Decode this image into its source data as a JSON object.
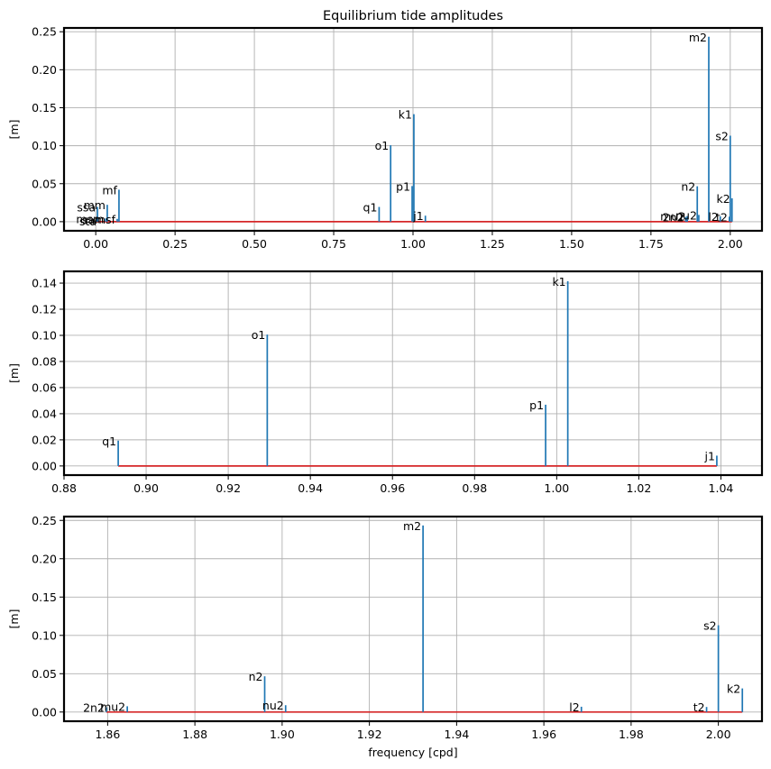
{
  "colors": {
    "stem": "#1f77b4",
    "baseline": "#d62728",
    "grid": "#b0b0b0"
  },
  "chart_data": [
    {
      "type": "stem",
      "title": "Equilibrium tide amplitudes",
      "ylabel": "[m]",
      "xlabel": "",
      "xlim": [
        -0.1,
        2.1
      ],
      "ylim": [
        -0.012,
        0.255
      ],
      "xticks": [
        0.0,
        0.25,
        0.5,
        0.75,
        1.0,
        1.25,
        1.5,
        1.75,
        2.0
      ],
      "xtick_labels": [
        "0.00",
        "0.25",
        "0.50",
        "0.75",
        "1.00",
        "1.25",
        "1.50",
        "1.75",
        "2.00"
      ],
      "yticks": [
        0.0,
        0.05,
        0.1,
        0.15,
        0.2,
        0.25
      ],
      "ytick_labels": [
        "0.00",
        "0.05",
        "0.10",
        "0.15",
        "0.20",
        "0.25"
      ],
      "grid": true,
      "baseline": [
        0.0,
        2.0056
      ],
      "points": [
        {
          "label": "sa",
          "x": 0.0027,
          "y": 0.0031
        },
        {
          "label": "ssa",
          "x": 0.0055,
          "y": 0.0195
        },
        {
          "label": "sta",
          "x": 0.0082,
          "y": 0.0011
        },
        {
          "label": "msm",
          "x": 0.0314,
          "y": 0.0043
        },
        {
          "label": "mm",
          "x": 0.0363,
          "y": 0.0222
        },
        {
          "label": "msf",
          "x": 0.0677,
          "y": 0.0037
        },
        {
          "label": "mf",
          "x": 0.0732,
          "y": 0.0421
        },
        {
          "label": "q1",
          "x": 0.8932,
          "y": 0.0194
        },
        {
          "label": "o1",
          "x": 0.9295,
          "y": 0.1006
        },
        {
          "label": "p1",
          "x": 0.9973,
          "y": 0.0469
        },
        {
          "label": "k1",
          "x": 1.0027,
          "y": 0.1415
        },
        {
          "label": "j1",
          "x": 1.039,
          "y": 0.0079
        },
        {
          "label": "2n2",
          "x": 1.8597,
          "y": 0.0062
        },
        {
          "label": "mu2",
          "x": 1.8645,
          "y": 0.0075
        },
        {
          "label": "n2",
          "x": 1.896,
          "y": 0.0466
        },
        {
          "label": "nu2",
          "x": 1.9008,
          "y": 0.0089
        },
        {
          "label": "m2",
          "x": 1.9323,
          "y": 0.2434
        },
        {
          "label": "l2",
          "x": 1.9686,
          "y": 0.0069
        },
        {
          "label": "t2",
          "x": 1.9973,
          "y": 0.0066
        },
        {
          "label": "s2",
          "x": 2.0,
          "y": 0.1132
        },
        {
          "label": "k2",
          "x": 2.0055,
          "y": 0.0308
        }
      ]
    },
    {
      "type": "stem",
      "title": "",
      "ylabel": "[m]",
      "xlabel": "",
      "xlim": [
        0.88,
        1.05
      ],
      "ylim": [
        -0.007,
        0.149
      ],
      "xticks": [
        0.88,
        0.9,
        0.92,
        0.94,
        0.96,
        0.98,
        1.0,
        1.02,
        1.04
      ],
      "xtick_labels": [
        "0.88",
        "0.90",
        "0.92",
        "0.94",
        "0.96",
        "0.98",
        "1.00",
        "1.02",
        "1.04"
      ],
      "yticks": [
        0.0,
        0.02,
        0.04,
        0.06,
        0.08,
        0.1,
        0.12,
        0.14
      ],
      "ytick_labels": [
        "0.00",
        "0.02",
        "0.04",
        "0.06",
        "0.08",
        "0.10",
        "0.12",
        "0.14"
      ],
      "grid": true,
      "baseline": [
        0.8932,
        1.039
      ],
      "points": [
        {
          "label": "q1",
          "x": 0.8932,
          "y": 0.0194
        },
        {
          "label": "o1",
          "x": 0.9295,
          "y": 0.1006
        },
        {
          "label": "p1",
          "x": 0.9973,
          "y": 0.0469
        },
        {
          "label": "k1",
          "x": 1.0027,
          "y": 0.1415
        },
        {
          "label": "j1",
          "x": 1.039,
          "y": 0.0079
        }
      ]
    },
    {
      "type": "stem",
      "title": "",
      "ylabel": "[m]",
      "xlabel": "frequency [cpd]",
      "xlim": [
        1.85,
        2.01
      ],
      "ylim": [
        -0.012,
        0.255
      ],
      "xticks": [
        1.86,
        1.88,
        1.9,
        1.92,
        1.94,
        1.96,
        1.98,
        2.0
      ],
      "xtick_labels": [
        "1.86",
        "1.88",
        "1.90",
        "1.92",
        "1.94",
        "1.96",
        "1.98",
        "2.00"
      ],
      "yticks": [
        0.0,
        0.05,
        0.1,
        0.15,
        0.2,
        0.25
      ],
      "ytick_labels": [
        "0.00",
        "0.05",
        "0.10",
        "0.15",
        "0.20",
        "0.25"
      ],
      "grid": true,
      "baseline": [
        1.8597,
        2.0055
      ],
      "points": [
        {
          "label": "2n2",
          "x": 1.8597,
          "y": 0.0062
        },
        {
          "label": "mu2",
          "x": 1.8645,
          "y": 0.0075
        },
        {
          "label": "n2",
          "x": 1.896,
          "y": 0.0466
        },
        {
          "label": "nu2",
          "x": 1.9008,
          "y": 0.0089
        },
        {
          "label": "m2",
          "x": 1.9323,
          "y": 0.2434
        },
        {
          "label": "l2",
          "x": 1.9686,
          "y": 0.0069
        },
        {
          "label": "t2",
          "x": 1.9973,
          "y": 0.0066
        },
        {
          "label": "s2",
          "x": 2.0,
          "y": 0.1132
        },
        {
          "label": "k2",
          "x": 2.0055,
          "y": 0.0308
        }
      ]
    }
  ]
}
